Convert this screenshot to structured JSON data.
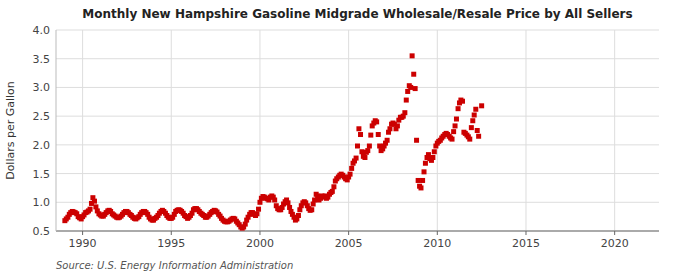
{
  "chart_data": {
    "type": "scatter",
    "title": "Monthly New Hampshire Gasoline Midgrade Wholesale/Resale Price by All Sellers",
    "y_label": "Dollars per Gallon",
    "source": "Source: U.S. Energy Information Administration",
    "color": "#cc0000",
    "marker": "square",
    "grid": true,
    "xlim": [
      1988.5,
      2022.5
    ],
    "ylim": [
      0.5,
      4.0
    ],
    "xticks": [
      1990,
      1995,
      2000,
      2005,
      2010,
      2015,
      2020
    ],
    "yticks": [
      0.5,
      {
        "value": 1.0,
        "label": "1.0"
      },
      1.5,
      {
        "value": 2.0,
        "label": "2.0"
      },
      2.5,
      {
        "value": 3.0,
        "label": "3.0"
      },
      3.5,
      {
        "value": 4.0,
        "label": "4.0"
      }
    ],
    "x": [
      1989.0,
      1989.08,
      1989.17,
      1989.25,
      1989.33,
      1989.42,
      1989.5,
      1989.58,
      1989.67,
      1989.75,
      1989.83,
      1989.92,
      1990.0,
      1990.08,
      1990.17,
      1990.25,
      1990.33,
      1990.42,
      1990.5,
      1990.58,
      1990.67,
      1990.75,
      1990.83,
      1990.92,
      1991.0,
      1991.08,
      1991.17,
      1991.25,
      1991.33,
      1991.42,
      1991.5,
      1991.58,
      1991.67,
      1991.75,
      1991.83,
      1991.92,
      1992.0,
      1992.08,
      1992.17,
      1992.25,
      1992.33,
      1992.42,
      1992.5,
      1992.58,
      1992.67,
      1992.75,
      1992.83,
      1992.92,
      1993.0,
      1993.08,
      1993.17,
      1993.25,
      1993.33,
      1993.42,
      1993.5,
      1993.58,
      1993.67,
      1993.75,
      1993.83,
      1993.92,
      1994.0,
      1994.08,
      1994.17,
      1994.25,
      1994.33,
      1994.42,
      1994.5,
      1994.58,
      1994.67,
      1994.75,
      1994.83,
      1994.92,
      1995.0,
      1995.08,
      1995.17,
      1995.25,
      1995.33,
      1995.42,
      1995.5,
      1995.58,
      1995.67,
      1995.75,
      1995.83,
      1995.92,
      1996.0,
      1996.08,
      1996.17,
      1996.25,
      1996.33,
      1996.42,
      1996.5,
      1996.58,
      1996.67,
      1996.75,
      1996.83,
      1996.92,
      1997.0,
      1997.08,
      1997.17,
      1997.25,
      1997.33,
      1997.42,
      1997.5,
      1997.58,
      1997.67,
      1997.75,
      1997.83,
      1997.92,
      1998.0,
      1998.08,
      1998.17,
      1998.25,
      1998.33,
      1998.42,
      1998.5,
      1998.58,
      1998.67,
      1998.75,
      1998.83,
      1998.92,
      1999.0,
      1999.08,
      1999.17,
      1999.25,
      1999.33,
      1999.42,
      1999.5,
      1999.58,
      1999.67,
      1999.75,
      1999.83,
      1999.92,
      2000.0,
      2000.08,
      2000.17,
      2000.25,
      2000.33,
      2000.42,
      2000.5,
      2000.58,
      2000.67,
      2000.75,
      2000.83,
      2000.92,
      2001.0,
      2001.08,
      2001.17,
      2001.25,
      2001.33,
      2001.42,
      2001.5,
      2001.58,
      2001.67,
      2001.75,
      2001.83,
      2001.92,
      2002.0,
      2002.08,
      2002.17,
      2002.25,
      2002.33,
      2002.42,
      2002.5,
      2002.58,
      2002.67,
      2002.75,
      2002.83,
      2002.92,
      2003.0,
      2003.08,
      2003.17,
      2003.25,
      2003.33,
      2003.42,
      2003.5,
      2003.58,
      2003.67,
      2003.75,
      2003.83,
      2003.92,
      2004.0,
      2004.08,
      2004.17,
      2004.25,
      2004.33,
      2004.42,
      2004.5,
      2004.58,
      2004.67,
      2004.75,
      2004.83,
      2004.92,
      2005.0,
      2005.08,
      2005.17,
      2005.25,
      2005.33,
      2005.42,
      2005.5,
      2005.58,
      2005.67,
      2005.75,
      2005.83,
      2005.92,
      2006.0,
      2006.08,
      2006.17,
      2006.25,
      2006.33,
      2006.42,
      2006.5,
      2006.58,
      2006.67,
      2006.75,
      2006.83,
      2006.92,
      2007.0,
      2007.08,
      2007.17,
      2007.25,
      2007.33,
      2007.42,
      2007.5,
      2007.58,
      2007.67,
      2007.75,
      2007.83,
      2007.92,
      2008.0,
      2008.08,
      2008.17,
      2008.25,
      2008.33,
      2008.42,
      2008.5,
      2008.58,
      2008.67,
      2008.75,
      2008.83,
      2008.92,
      2009.0,
      2009.08,
      2009.17,
      2009.25,
      2009.33,
      2009.42,
      2009.5,
      2009.58,
      2009.67,
      2009.75,
      2009.83,
      2009.92,
      2010.0,
      2010.08,
      2010.17,
      2010.25,
      2010.33,
      2010.42,
      2010.5,
      2010.58,
      2010.67,
      2010.75,
      2010.83,
      2010.92,
      2011.0,
      2011.08,
      2011.17,
      2011.25,
      2011.33,
      2011.42,
      2011.5,
      2011.58,
      2011.67,
      2011.75,
      2011.83,
      2011.92,
      2012.0,
      2012.08,
      2012.17,
      2012.25,
      2012.33,
      2012.5
    ],
    "values": [
      0.68,
      0.71,
      0.74,
      0.79,
      0.82,
      0.84,
      0.83,
      0.82,
      0.8,
      0.75,
      0.73,
      0.71,
      0.75,
      0.78,
      0.82,
      0.83,
      0.85,
      0.88,
      0.98,
      1.08,
      1.02,
      0.92,
      0.85,
      0.8,
      0.78,
      0.76,
      0.76,
      0.79,
      0.82,
      0.85,
      0.86,
      0.84,
      0.8,
      0.78,
      0.76,
      0.74,
      0.73,
      0.74,
      0.76,
      0.79,
      0.82,
      0.84,
      0.84,
      0.82,
      0.79,
      0.77,
      0.74,
      0.72,
      0.71,
      0.73,
      0.75,
      0.79,
      0.82,
      0.84,
      0.84,
      0.82,
      0.79,
      0.74,
      0.71,
      0.69,
      0.69,
      0.72,
      0.74,
      0.77,
      0.81,
      0.84,
      0.86,
      0.84,
      0.81,
      0.77,
      0.74,
      0.72,
      0.72,
      0.74,
      0.79,
      0.84,
      0.86,
      0.87,
      0.86,
      0.84,
      0.81,
      0.77,
      0.75,
      0.72,
      0.74,
      0.77,
      0.81,
      0.87,
      0.89,
      0.89,
      0.87,
      0.84,
      0.81,
      0.79,
      0.77,
      0.74,
      0.74,
      0.76,
      0.79,
      0.82,
      0.84,
      0.86,
      0.85,
      0.83,
      0.79,
      0.76,
      0.72,
      0.69,
      0.67,
      0.66,
      0.66,
      0.67,
      0.69,
      0.71,
      0.72,
      0.71,
      0.67,
      0.64,
      0.61,
      0.57,
      0.55,
      0.57,
      0.62,
      0.69,
      0.74,
      0.79,
      0.82,
      0.82,
      0.79,
      0.77,
      0.8,
      0.88,
      1.0,
      1.07,
      1.1,
      1.09,
      1.07,
      1.06,
      1.04,
      1.09,
      1.11,
      1.09,
      1.04,
      0.94,
      0.89,
      0.87,
      0.87,
      0.91,
      0.97,
      1.01,
      1.04,
      0.99,
      0.91,
      0.84,
      0.79,
      0.74,
      0.69,
      0.71,
      0.77,
      0.87,
      0.94,
      0.99,
      1.01,
      0.99,
      0.94,
      0.89,
      0.86,
      0.87,
      0.97,
      1.04,
      1.14,
      1.11,
      1.04,
      1.07,
      1.11,
      1.09,
      1.11,
      1.07,
      1.09,
      1.14,
      1.17,
      1.19,
      1.27,
      1.37,
      1.41,
      1.44,
      1.47,
      1.49,
      1.47,
      1.44,
      1.41,
      1.39,
      1.44,
      1.49,
      1.59,
      1.68,
      1.72,
      1.77,
      1.98,
      2.28,
      2.18,
      1.88,
      1.8,
      1.78,
      1.87,
      1.9,
      1.98,
      2.17,
      2.33,
      2.38,
      2.42,
      2.4,
      2.18,
      1.98,
      1.9,
      1.93,
      1.98,
      2.03,
      2.08,
      2.22,
      2.28,
      2.36,
      2.38,
      2.36,
      2.28,
      2.33,
      2.43,
      2.48,
      2.48,
      2.5,
      2.56,
      2.78,
      2.93,
      3.03,
      3.0,
      3.55,
      3.23,
      2.98,
      2.08,
      1.38,
      1.28,
      1.25,
      1.38,
      1.53,
      1.68,
      1.78,
      1.83,
      1.76,
      1.73,
      1.78,
      1.88,
      1.98,
      2.03,
      2.06,
      2.08,
      2.12,
      2.15,
      2.18,
      2.2,
      2.18,
      2.15,
      2.12,
      2.1,
      2.23,
      2.33,
      2.45,
      2.63,
      2.73,
      2.78,
      2.76,
      2.22,
      2.2,
      2.17,
      2.14,
      2.1,
      2.3,
      2.42,
      2.52,
      2.62,
      2.25,
      2.15,
      2.68
    ]
  }
}
